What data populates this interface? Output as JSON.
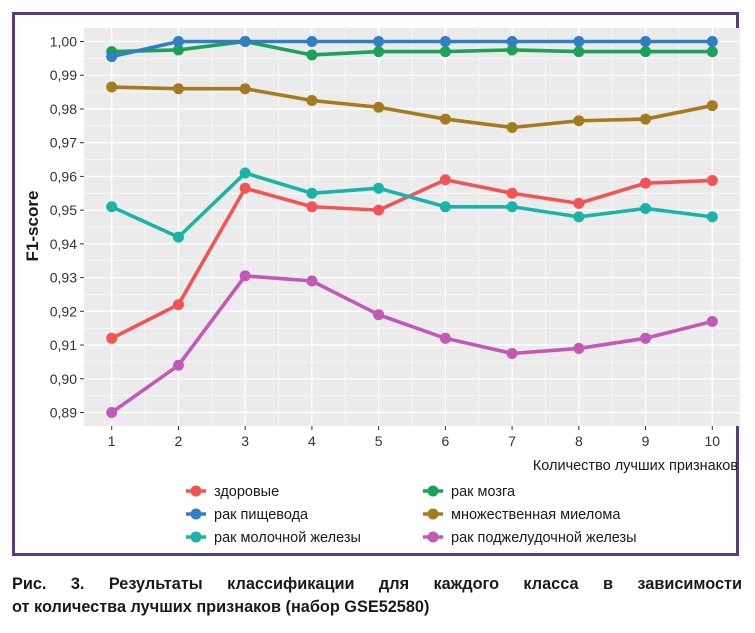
{
  "chart_data": {
    "type": "line",
    "title": "",
    "xlabel": "Количество лучших признаков",
    "ylabel": "F1-score",
    "x": [
      1,
      2,
      3,
      4,
      5,
      6,
      7,
      8,
      9,
      10
    ],
    "x_ticks": [
      "1",
      "2",
      "3",
      "4",
      "5",
      "6",
      "7",
      "8",
      "9",
      "10"
    ],
    "ylim": [
      0.886,
      1.004
    ],
    "y_ticks": [
      {
        "value": 0.89,
        "label": "0,89"
      },
      {
        "value": 0.9,
        "label": "0,90"
      },
      {
        "value": 0.91,
        "label": "0,91"
      },
      {
        "value": 0.92,
        "label": "0,92"
      },
      {
        "value": 0.93,
        "label": "0,93"
      },
      {
        "value": 0.94,
        "label": "0,94"
      },
      {
        "value": 0.95,
        "label": "0,95"
      },
      {
        "value": 0.96,
        "label": "0,96"
      },
      {
        "value": 0.97,
        "label": "0,97"
      },
      {
        "value": 0.98,
        "label": "0,98"
      },
      {
        "value": 0.99,
        "label": "0,99"
      },
      {
        "value": 1.0,
        "label": "1,00"
      }
    ],
    "grid": true,
    "legend_position": "bottom",
    "series": [
      {
        "name": "здоровые",
        "color": "#f05454",
        "values": [
          0.912,
          0.922,
          0.9565,
          0.951,
          0.95,
          0.959,
          0.955,
          0.952,
          0.958,
          0.9588
        ]
      },
      {
        "name": "рак мозга",
        "color": "#1aa356",
        "values": [
          0.997,
          0.9975,
          1.0,
          0.996,
          0.997,
          0.997,
          0.9975,
          0.997,
          0.997,
          0.997
        ]
      },
      {
        "name": "рак пищевода",
        "color": "#2f7ec6",
        "values": [
          0.9955,
          1.0,
          1.0,
          1.0,
          1.0,
          1.0,
          1.0,
          1.0,
          1.0,
          1.0
        ]
      },
      {
        "name": "множественная миелома",
        "color": "#a57b1f",
        "values": [
          0.9865,
          0.986,
          0.986,
          0.9825,
          0.9805,
          0.977,
          0.9745,
          0.9765,
          0.977,
          0.981
        ]
      },
      {
        "name": "рак молочной железы",
        "color": "#19b3a8",
        "values": [
          0.951,
          0.942,
          0.961,
          0.955,
          0.9565,
          0.951,
          0.951,
          0.948,
          0.9505,
          0.948
        ]
      },
      {
        "name": "рак поджелудочной железы",
        "color": "#c358b6",
        "values": [
          0.89,
          0.904,
          0.9305,
          0.929,
          0.919,
          0.912,
          0.9075,
          0.909,
          0.912,
          0.917
        ]
      }
    ],
    "legend_columns": [
      [
        "здоровые",
        "рак пищевода",
        "рак молочной железы"
      ],
      [
        "рак мозга",
        "множественная миелома",
        "рак поджелудочной железы"
      ]
    ]
  },
  "caption": {
    "line1": "Рис. 3. Результаты классификации для каждого класса в зависимости",
    "line2": "от количества лучших признаков (набор GSE52580)"
  },
  "colors": {
    "frame": "#5b3b7f",
    "panel_background": "#ebebeb",
    "grid": "#ffffff"
  }
}
